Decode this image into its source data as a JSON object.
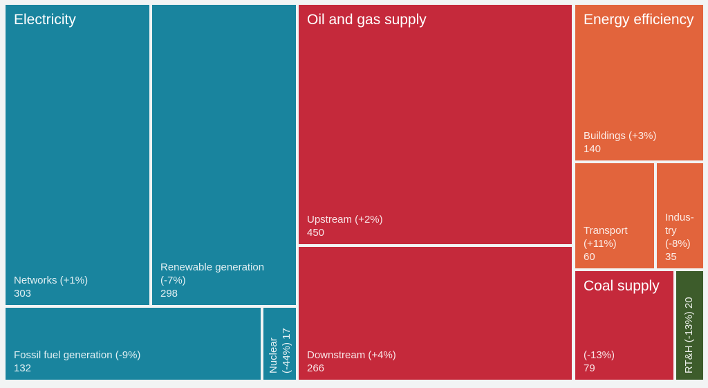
{
  "colors": {
    "electricity": "#19849e",
    "oil_and_gas": "#c5293b",
    "energy_efficiency": "#e2643c",
    "coal_supply": "#c5293b",
    "rth": "#3d5c2b",
    "background": "#f2f4f4",
    "title_text": "#ffffff"
  },
  "groups": {
    "electricity": {
      "title": "Electricity"
    },
    "oil_and_gas": {
      "title": "Oil and gas supply"
    },
    "energy_efficiency": {
      "title": "Energy efficiency"
    },
    "coal_supply": {
      "title": "Coal supply"
    }
  },
  "tiles": {
    "networks": {
      "label": "Networks (+1%)",
      "value": "303"
    },
    "renewable": {
      "label": "Renewable generation\n(-7%)",
      "value": "298"
    },
    "fossil": {
      "label": "Fossil fuel generation (-9%)",
      "value": "132"
    },
    "nuclear": {
      "vertical_label": "Nuclear\n(-44%) 17"
    },
    "upstream": {
      "label": "Upstream (+2%)",
      "value": "450"
    },
    "downstream": {
      "label": "Downstream (+4%)",
      "value": "266"
    },
    "buildings": {
      "label": "Buildings (+3%)",
      "value": "140"
    },
    "transport": {
      "label": "Transport\n(+11%)",
      "value": "60"
    },
    "industry": {
      "label": "Indus-\ntry\n(-8%)",
      "value": "35"
    },
    "coal": {
      "label": "(-13%)",
      "value": "79"
    },
    "rth": {
      "vertical_label": "RT&H (-13%) 20"
    }
  },
  "chart_data": {
    "type": "treemap",
    "title": "",
    "legend": "none",
    "groups": [
      {
        "name": "Electricity",
        "color": "#19849e",
        "children": [
          {
            "label": "Networks",
            "change": "+1%",
            "value": 303
          },
          {
            "label": "Renewable generation",
            "change": "-7%",
            "value": 298
          },
          {
            "label": "Fossil fuel generation",
            "change": "-9%",
            "value": 132
          },
          {
            "label": "Nuclear",
            "change": "-44%",
            "value": 17
          }
        ]
      },
      {
        "name": "Oil and gas supply",
        "color": "#c5293b",
        "children": [
          {
            "label": "Upstream",
            "change": "+2%",
            "value": 450
          },
          {
            "label": "Downstream",
            "change": "+4%",
            "value": 266
          }
        ]
      },
      {
        "name": "Energy efficiency",
        "color": "#e2643c",
        "children": [
          {
            "label": "Buildings",
            "change": "+3%",
            "value": 140
          },
          {
            "label": "Transport",
            "change": "+11%",
            "value": 60
          },
          {
            "label": "Industry",
            "change": "-8%",
            "value": 35
          }
        ]
      },
      {
        "name": "Coal supply",
        "color": "#c5293b",
        "children": [
          {
            "label": "Coal supply",
            "change": "-13%",
            "value": 79
          }
        ]
      },
      {
        "name": "RT&H",
        "color": "#3d5c2b",
        "children": [
          {
            "label": "RT&H",
            "change": "-13%",
            "value": 20
          }
        ]
      }
    ]
  }
}
